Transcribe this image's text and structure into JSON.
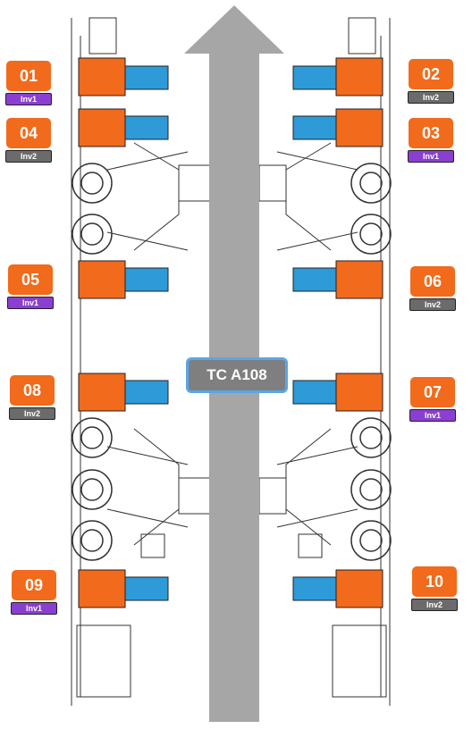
{
  "center_label": "TC A108",
  "colors": {
    "orange": "#f26a1b",
    "blue": "#2e9ad8",
    "inv1": "#8a3fd1",
    "inv2": "#6b6b6b",
    "arrow": "#a6a6a6",
    "frame_border": "#5aa6e6"
  },
  "markers": [
    {
      "id": "01",
      "inv": "Inv1"
    },
    {
      "id": "02",
      "inv": "Inv2"
    },
    {
      "id": "04",
      "inv": "Inv2"
    },
    {
      "id": "03",
      "inv": "Inv1"
    },
    {
      "id": "05",
      "inv": "Inv1"
    },
    {
      "id": "06",
      "inv": "Inv2"
    },
    {
      "id": "08",
      "inv": "Inv2"
    },
    {
      "id": "07",
      "inv": "Inv1"
    },
    {
      "id": "09",
      "inv": "Inv1"
    },
    {
      "id": "10",
      "inv": "Inv2"
    }
  ]
}
